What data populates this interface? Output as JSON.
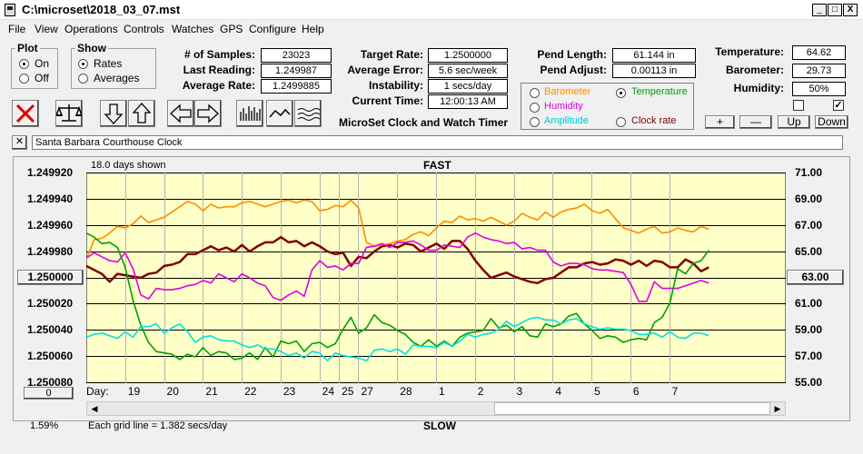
{
  "window": {
    "title": "C:\\microset\\2018_03_07.mst",
    "min": "_",
    "max": "□",
    "close": "X"
  },
  "menu": [
    "File",
    "View",
    "Operations",
    "Controls",
    "Watches",
    "GPS",
    "Configure",
    "Help"
  ],
  "plot_group": {
    "title": "Plot",
    "on": "On",
    "off": "Off"
  },
  "show_group": {
    "title": "Show",
    "rates": "Rates",
    "averages": "Averages"
  },
  "stats": {
    "samples_label": "# of Samples:",
    "samples": "23023",
    "last_reading_label": "Last Reading:",
    "last_reading": "1.249987",
    "average_rate_label": "Average Rate:",
    "average_rate": "1.2499885",
    "target_rate_label": "Target Rate:",
    "target_rate": "1.2500000",
    "average_error_label": "Average Error:",
    "average_error": "5.6 sec/week",
    "instability_label": "Instability:",
    "instability": "1 secs/day",
    "current_time_label": "Current Time:",
    "current_time": "12:00:13 AM",
    "pend_length_label": "Pend Length:",
    "pend_length": "61.144 in",
    "pend_adjust_label": "Pend Adjust:",
    "pend_adjust": "0.00113 in",
    "temperature_label": "Temperature:",
    "temperature": "64.62",
    "barometer_label": "Barometer:",
    "barometer": "29.73",
    "humidity_label": "Humidity:",
    "humidity": "50%"
  },
  "app_title": "MicroSet Clock and Watch Timer",
  "channel_select": {
    "barometer": "Barometer",
    "temperature": "Temperature",
    "humidity": "Humidity",
    "amplitude": "Amplitude",
    "clock_rate": "Clock rate"
  },
  "colors": {
    "barometer": "#ff8c00",
    "temperature": "#00a000",
    "humidity": "#e000e0",
    "amplitude": "#00e0e0",
    "clock_rate": "#800000",
    "plot_bg": "#ffffc8"
  },
  "scale_buttons": {
    "plus": "+",
    "minus": "—",
    "up": "Up",
    "down": "Down"
  },
  "clock_name": "Santa Barbara Courthouse Clock",
  "clear_label": "✕",
  "chart_header": {
    "days_shown": "18.0 days shown",
    "fast": "FAST",
    "slow": "SLOW",
    "day_label": "Day:"
  },
  "left_center_value": "1.250000",
  "right_center_value": "63.00",
  "bottom_left_value": "0",
  "percent": "1.59%",
  "grid_note": "Each grid line = 1.382 secs/day",
  "chart_data": {
    "type": "line",
    "y_left_ticks": [
      "1.249920",
      "1.249940",
      "1.249960",
      "1.249980",
      "1.250000",
      "1.250020",
      "1.250040",
      "1.250060",
      "1.250080"
    ],
    "y_right_ticks": [
      "71.00",
      "69.00",
      "67.00",
      "65.00",
      "63.00",
      "61.00",
      "59.00",
      "57.00",
      "55.00"
    ],
    "x_ticks": [
      "19",
      "20",
      "21",
      "22",
      "23",
      "24",
      "25",
      "27",
      "28",
      "1",
      "2",
      "3",
      "4",
      "5",
      "6",
      "7"
    ],
    "x_tick_day_offsets": [
      1,
      2,
      3,
      4,
      5,
      6,
      6.5,
      7,
      8,
      9,
      10,
      11,
      12,
      13,
      14,
      15
    ],
    "x_range_days": [
      0,
      18
    ],
    "y_range": [
      -8,
      8
    ],
    "series": [
      {
        "name": "Barometer",
        "color": "#ff8c00",
        "values": [
          1.4,
          2.9,
          3.0,
          3.4,
          3.9,
          3.8,
          4.1,
          4.7,
          4.2,
          4.4,
          4.6,
          5.0,
          5.4,
          5.8,
          5.6,
          5.1,
          5.6,
          5.3,
          5.4,
          5.4,
          5.7,
          5.8,
          5.6,
          5.4,
          5.6,
          5.8,
          5.9,
          5.7,
          5.9,
          5.8,
          5.1,
          5.2,
          5.5,
          5.4,
          5.9,
          5.3,
          2.7,
          2.4,
          2.5,
          2.6,
          2.8,
          2.9,
          3.3,
          3.5,
          3.2,
          3.8,
          4.3,
          4.2,
          4.7,
          4.4,
          4.5,
          4.3,
          4.6,
          4.3,
          4.0,
          4.3,
          4.9,
          4.6,
          4.4,
          5.0,
          4.6,
          5.0,
          5.2,
          5.3,
          5.6,
          5.1,
          4.9,
          5.2,
          4.5,
          3.8,
          3.6,
          3.4,
          3.7,
          3.9,
          3.4,
          3.5,
          3.8,
          3.6,
          3.5,
          3.9,
          3.7
        ]
      },
      {
        "name": "Temperature",
        "color": "#00a000",
        "values": [
          3.4,
          3.1,
          2.6,
          2.7,
          2.3,
          0.8,
          -1.7,
          -3.6,
          -4.9,
          -5.6,
          -5.7,
          -5.8,
          -6.2,
          -5.8,
          -6.0,
          -5.3,
          -5.9,
          -5.6,
          -5.7,
          -6.2,
          -6.1,
          -5.7,
          -6.2,
          -5.3,
          -6.0,
          -4.8,
          -5.0,
          -4.8,
          -5.6,
          -5.0,
          -4.9,
          -5.3,
          -5.0,
          -3.9,
          -3.0,
          -4.2,
          -3.8,
          -2.8,
          -3.4,
          -3.6,
          -4.0,
          -4.3,
          -4.9,
          -5.2,
          -4.7,
          -5.2,
          -4.8,
          -5.2,
          -4.5,
          -4.2,
          -4.1,
          -4.0,
          -3.1,
          -3.8,
          -3.6,
          -4.1,
          -3.7,
          -4.4,
          -4.5,
          -3.5,
          -3.7,
          -3.5,
          -2.9,
          -2.7,
          -3.5,
          -4.0,
          -4.6,
          -4.4,
          -4.5,
          -4.9,
          -4.7,
          -4.6,
          -4.7,
          -3.4,
          -3.0,
          -1.9,
          0.7,
          0.3,
          1.1,
          1.3,
          2.1
        ]
      },
      {
        "name": "Humidity",
        "color": "#e000e0",
        "values": [
          1.5,
          1.9,
          1.6,
          1.3,
          1.2,
          1.9,
          0.7,
          -1.3,
          -1.6,
          -0.8,
          -0.9,
          -0.9,
          -0.8,
          -0.6,
          -0.5,
          -0.2,
          -0.4,
          0.3,
          0.0,
          -0.3,
          0.3,
          0.0,
          -0.4,
          -0.6,
          -1.5,
          -1.7,
          -1.3,
          -1.0,
          -1.4,
          0.6,
          1.3,
          0.8,
          0.9,
          0.6,
          1.1,
          1.1,
          2.3,
          2.4,
          2.6,
          2.3,
          2.7,
          2.7,
          2.8,
          2.5,
          2.1,
          2.1,
          2.5,
          2.4,
          2.3,
          3.1,
          3.4,
          3.1,
          2.9,
          2.8,
          2.6,
          2.7,
          2.2,
          2.3,
          2.1,
          2.1,
          1.2,
          0.9,
          1.1,
          1.1,
          1.0,
          0.7,
          0.6,
          0.6,
          0.5,
          0.4,
          -0.5,
          -1.8,
          -1.8,
          -0.3,
          -0.8,
          -0.8,
          -0.8,
          -0.6,
          -0.4,
          -0.2,
          -0.4
        ]
      },
      {
        "name": "Amplitude",
        "color": "#00e0e0",
        "values": [
          -4.5,
          -4.3,
          -4.2,
          -4.4,
          -4.6,
          -4.1,
          -4.5,
          -3.7,
          -3.7,
          -3.5,
          -4.2,
          -3.8,
          -3.5,
          -4.1,
          -4.9,
          -4.5,
          -4.4,
          -4.7,
          -4.8,
          -4.8,
          -5.1,
          -5.3,
          -5.1,
          -5.4,
          -5.4,
          -5.6,
          -5.9,
          -5.7,
          -6.1,
          -5.6,
          -5.7,
          -6.3,
          -5.7,
          -5.9,
          -6.0,
          -6.1,
          -6.3,
          -5.5,
          -5.4,
          -5.6,
          -5.4,
          -5.8,
          -5.1,
          -5.2,
          -5.2,
          -5.3,
          -4.9,
          -5.2,
          -4.8,
          -4.3,
          -4.5,
          -4.3,
          -4.2,
          -3.9,
          -3.3,
          -3.7,
          -3.4,
          -3.1,
          -3.0,
          -3.2,
          -3.2,
          -3.5,
          -3.2,
          -3.1,
          -3.5,
          -3.7,
          -3.9,
          -3.8,
          -3.9,
          -3.9,
          -4.0,
          -4.3,
          -4.3,
          -4.2,
          -4.5,
          -4.1,
          -4.5,
          -4.6,
          -4.2,
          -4.2,
          -4.4
        ]
      },
      {
        "name": "Clock rate",
        "color": "#800000",
        "values": [
          0.9,
          0.6,
          0.3,
          -0.3,
          0.3,
          0.2,
          0.1,
          0.0,
          0.3,
          0.4,
          0.9,
          1.0,
          1.2,
          1.8,
          1.8,
          2.1,
          2.4,
          2.1,
          2.3,
          2.0,
          2.5,
          2.0,
          2.4,
          2.7,
          2.7,
          3.1,
          2.7,
          2.8,
          2.4,
          2.7,
          2.4,
          2.0,
          1.8,
          1.9,
          0.9,
          1.6,
          1.5,
          2.0,
          2.4,
          2.5,
          2.3,
          2.6,
          2.5,
          2.0,
          2.3,
          2.6,
          2.2,
          2.8,
          2.8,
          2.2,
          1.3,
          0.6,
          -0.0,
          0.2,
          0.4,
          0.1,
          -0.1,
          -0.3,
          -0.4,
          -0.1,
          0.0,
          0.4,
          0.8,
          0.8,
          1.1,
          1.2,
          1.0,
          1.1,
          1.4,
          1.3,
          1.0,
          1.3,
          0.9,
          1.3,
          1.2,
          0.8,
          0.8,
          1.4,
          1.1,
          0.5,
          0.8
        ]
      }
    ]
  }
}
